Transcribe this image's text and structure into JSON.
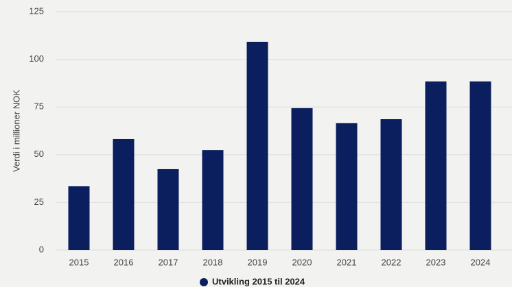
{
  "chart_data": {
    "type": "bar",
    "y_label": "Verdi i millioner NOK",
    "categories": [
      "2015",
      "2016",
      "2017",
      "2018",
      "2019",
      "2020",
      "2021",
      "2022",
      "2023",
      "2024"
    ],
    "series": [
      {
        "name": "Utvikling 2015 til 2024",
        "color": "#0b1f5e",
        "values": [
          33.4,
          58.2,
          42.4,
          52.4,
          109.2,
          74.4,
          66.5,
          68.6,
          88.4,
          88.4
        ]
      }
    ],
    "ylim": [
      0,
      125
    ],
    "yticks": [
      0,
      25,
      50,
      75,
      100,
      125
    ],
    "grid": true,
    "legend": "bottom"
  }
}
